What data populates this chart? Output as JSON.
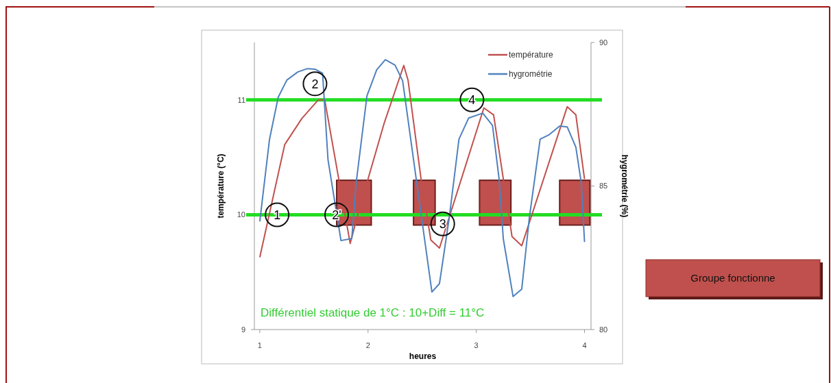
{
  "chart_data": {
    "type": "line",
    "xlabel": "heures",
    "ylabel": "température (°C)",
    "y2label": "hygrométrie (%)",
    "xlim": [
      0.95,
      4.06
    ],
    "xticks": [
      1,
      2,
      3,
      4
    ],
    "ylim": [
      9,
      11.5
    ],
    "yticks": [
      9,
      10,
      11
    ],
    "y2lim": [
      80,
      90
    ],
    "y2ticks": [
      80,
      85,
      90
    ],
    "series": [
      {
        "name": "température",
        "color": "#c0504d",
        "x": [
          1.0,
          1.23,
          1.39,
          1.54,
          1.6,
          1.835,
          1.92,
          2.15,
          2.33,
          2.37,
          2.49,
          2.58,
          2.66,
          3.07,
          3.16,
          3.25,
          3.33,
          3.42,
          3.84,
          3.92,
          4.0
        ],
        "values": [
          9.63,
          10.61,
          10.84,
          11.0,
          11.0,
          9.75,
          10.05,
          10.8,
          11.3,
          11.17,
          10.31,
          9.78,
          9.71,
          10.93,
          10.87,
          10.31,
          9.81,
          9.73,
          10.94,
          10.87,
          10.31
        ]
      },
      {
        "name": "hygrométrie",
        "color": "#4f81bd",
        "axis": "y2",
        "x": [
          1.0,
          1.09,
          1.17,
          1.25,
          1.35,
          1.44,
          1.51,
          1.58,
          1.63,
          1.75,
          1.85,
          1.89,
          1.99,
          2.08,
          2.16,
          2.25,
          2.32,
          2.45,
          2.59,
          2.66,
          2.75,
          2.84,
          2.93,
          3.06,
          3.15,
          3.21,
          3.25,
          3.34,
          3.42,
          3.49,
          3.59,
          3.67,
          3.77,
          3.84,
          3.92,
          3.97,
          4.0
        ],
        "values": [
          83.77,
          86.63,
          88.09,
          88.69,
          88.97,
          89.09,
          89.07,
          88.93,
          85.92,
          83.1,
          83.17,
          85.1,
          88.14,
          89.05,
          89.4,
          89.21,
          88.66,
          85.11,
          81.31,
          81.6,
          83.89,
          86.63,
          87.37,
          87.54,
          87.11,
          85.27,
          83.15,
          81.15,
          81.41,
          83.89,
          86.63,
          86.78,
          87.09,
          87.06,
          86.35,
          85.11,
          83.05
        ]
      }
    ],
    "ref_lines": [
      {
        "axis": "y",
        "value": 10,
        "color": "#22dd22"
      },
      {
        "axis": "y",
        "value": 11,
        "color": "#22dd22"
      }
    ],
    "bands": [
      {
        "axis": "x",
        "from": 1.71,
        "to": 2.03,
        "color": "#c0504d"
      },
      {
        "axis": "x",
        "from": 2.42,
        "to": 2.62,
        "color": "#c0504d"
      },
      {
        "axis": "x",
        "from": 3.03,
        "to": 3.32,
        "color": "#c0504d"
      },
      {
        "axis": "x",
        "from": 3.77,
        "to": 4.05,
        "color": "#c0504d"
      }
    ],
    "annotations": [
      {
        "text": "1",
        "x": 1.16,
        "y": 10.0
      },
      {
        "text": "2",
        "x": 1.51,
        "y": 11.14
      },
      {
        "text": "2'",
        "x": 1.71,
        "y": 10.0
      },
      {
        "text": "3",
        "x": 2.69,
        "y": 9.92
      },
      {
        "text": "4",
        "x": 2.96,
        "y": 11.0
      },
      "Différentiel statique de 1°C : 10+Diff = 11°C",
      "Groupe fonctionne"
    ],
    "legend": "top right",
    "marker": "none",
    "grid": false
  }
}
